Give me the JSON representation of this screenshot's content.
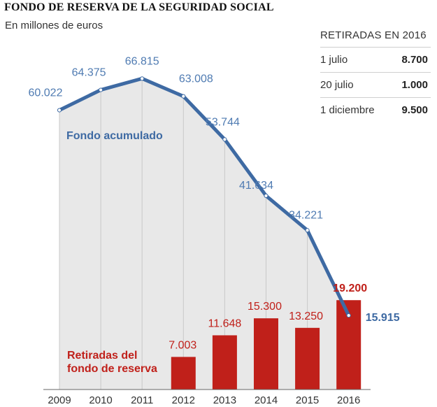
{
  "header": {
    "title": "FONDO DE RESERVA DE LA SEGURIDAD SOCIAL",
    "subtitle": "En millones de euros"
  },
  "withdrawals_table": {
    "title": "RETIRADAS EN 2016",
    "rows": [
      {
        "date": "1 julio",
        "value": "8.700"
      },
      {
        "date": "20 julio",
        "value": "1.000"
      },
      {
        "date": "1 diciembre",
        "value": "9.500"
      }
    ]
  },
  "chart_data": {
    "type": "line+bar",
    "categories": [
      "2009",
      "2010",
      "2011",
      "2012",
      "2013",
      "2014",
      "2015",
      "2016"
    ],
    "series": [
      {
        "name": "Fondo acumulado",
        "type": "line",
        "color": "#3e6aa3",
        "values": [
          60022,
          64375,
          66815,
          63008,
          53744,
          41634,
          34221,
          15915
        ],
        "labels": [
          "60.022",
          "64.375",
          "66.815",
          "63.008",
          "53.744",
          "41.634",
          "34.221",
          "15.915"
        ]
      },
      {
        "name": "Retiradas del fondo de reserva",
        "name_lines": [
          "Retiradas del",
          "fondo de reserva"
        ],
        "type": "bar",
        "color": "#c0201a",
        "values": [
          null,
          null,
          null,
          7003,
          11648,
          15300,
          13250,
          19200
        ],
        "labels": [
          "",
          "",
          "",
          "7.003",
          "11.648",
          "15.300",
          "13.250",
          "19.200"
        ]
      }
    ],
    "ylim": [
      0,
      70000
    ],
    "colors": {
      "line": "#3e6aa3",
      "line_label": "#4f7bb2",
      "bar": "#c0201a",
      "area_fill": "#e8e8e8",
      "gridline": "#c8c8c8"
    }
  }
}
